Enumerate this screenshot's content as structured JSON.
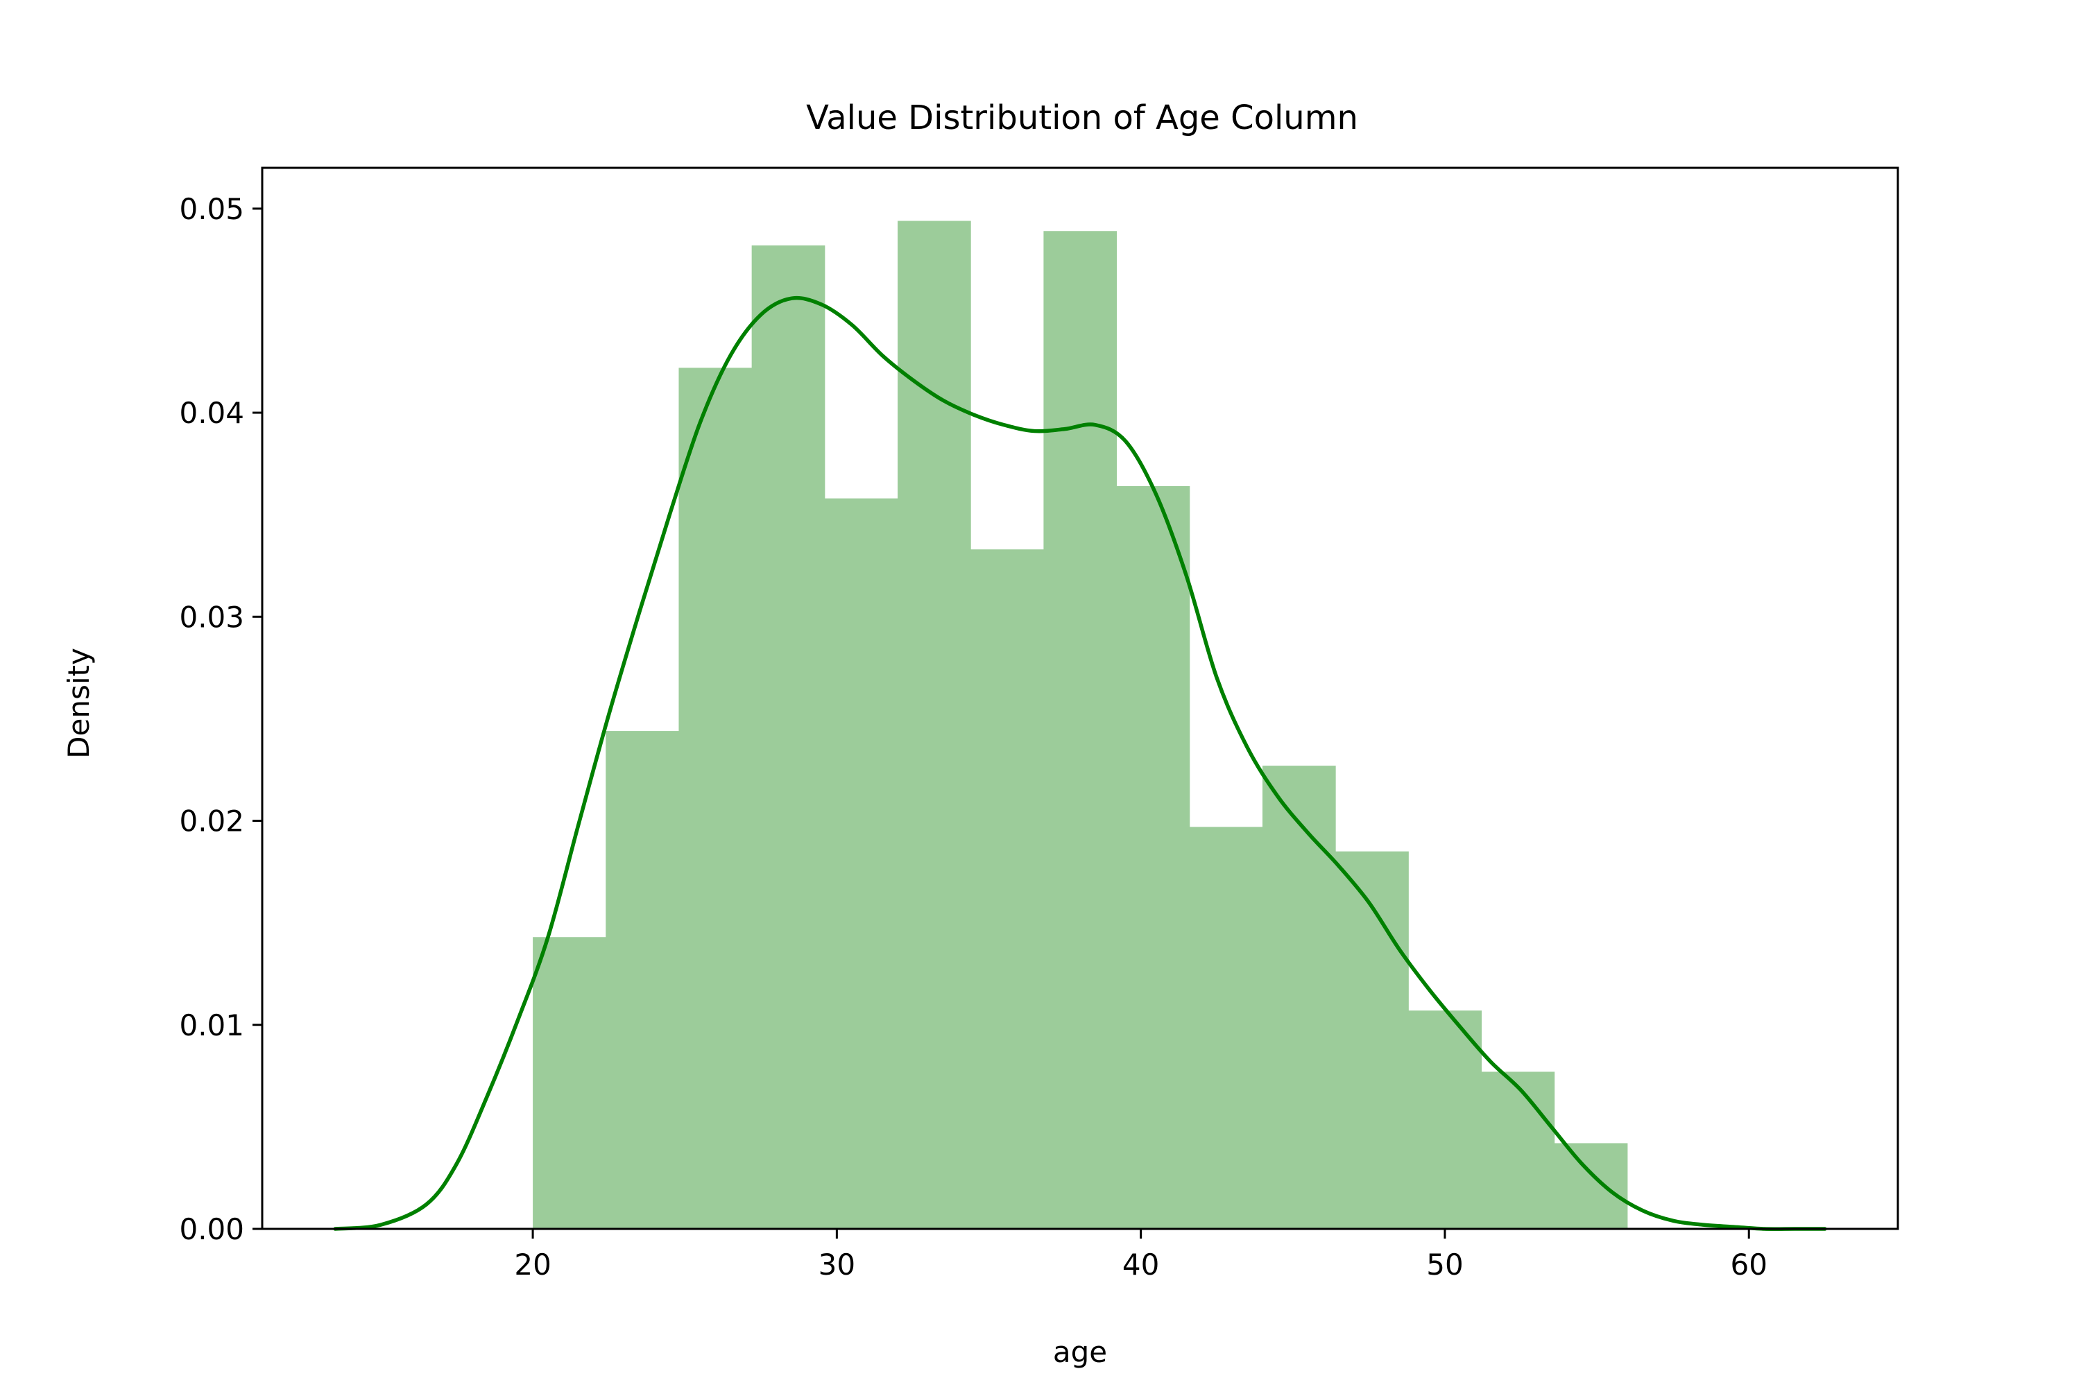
{
  "chart_data": {
    "type": "bar",
    "title": "Value Distribution of Age Column",
    "xlabel": "age",
    "ylabel": "Density",
    "xlim": [
      11.1,
      64.9
    ],
    "ylim": [
      0.0,
      0.052
    ],
    "xticks": [
      20,
      30,
      40,
      50,
      60
    ],
    "xtick_labels": [
      "20",
      "30",
      "40",
      "50",
      "60"
    ],
    "yticks": [
      0.0,
      0.01,
      0.02,
      0.03,
      0.04,
      0.05
    ],
    "ytick_labels": [
      "0.00",
      "0.01",
      "0.02",
      "0.03",
      "0.04",
      "0.05"
    ],
    "grid": false,
    "bar_color": "#9ccc9a",
    "line_color": "#008000",
    "histogram": {
      "bin_edges": [
        20.0,
        22.4,
        24.8,
        27.2,
        29.6,
        32.0,
        34.4,
        36.8,
        39.2,
        41.6,
        44.0,
        46.4,
        48.8,
        51.2,
        53.6,
        56.0
      ],
      "density": [
        0.0143,
        0.0244,
        0.0422,
        0.0482,
        0.0358,
        0.0494,
        0.0333,
        0.0489,
        0.0364,
        0.0197,
        0.0227,
        0.0185,
        0.0107,
        0.0077,
        0.0042
      ]
    },
    "kde": {
      "x": [
        13.5,
        15.0,
        16.5,
        17.5,
        18.5,
        19.5,
        20.5,
        21.5,
        22.5,
        23.5,
        24.5,
        25.5,
        26.5,
        27.5,
        28.5,
        29.5,
        30.5,
        31.5,
        32.5,
        33.5,
        34.5,
        35.5,
        36.5,
        37.5,
        38.5,
        39.5,
        40.5,
        41.5,
        42.5,
        43.5,
        44.5,
        45.5,
        46.5,
        47.5,
        48.5,
        49.5,
        50.5,
        51.5,
        52.5,
        53.5,
        54.5,
        55.5,
        56.5,
        57.5,
        58.5,
        59.5,
        60.5,
        61.5,
        62.5
      ],
      "y": [
        0.0,
        0.0002,
        0.0012,
        0.0032,
        0.0065,
        0.0102,
        0.0143,
        0.0198,
        0.0252,
        0.0302,
        0.035,
        0.0395,
        0.0428,
        0.0448,
        0.0456,
        0.0453,
        0.0443,
        0.0428,
        0.0416,
        0.0406,
        0.0399,
        0.0394,
        0.0391,
        0.0392,
        0.0394,
        0.0386,
        0.036,
        0.032,
        0.027,
        0.0236,
        0.0212,
        0.0194,
        0.0178,
        0.016,
        0.0137,
        0.0117,
        0.0099,
        0.0082,
        0.0068,
        0.005,
        0.0032,
        0.0018,
        0.0009,
        0.0004,
        0.0002,
        0.0001,
        0.0,
        0.0,
        0.0
      ]
    }
  }
}
